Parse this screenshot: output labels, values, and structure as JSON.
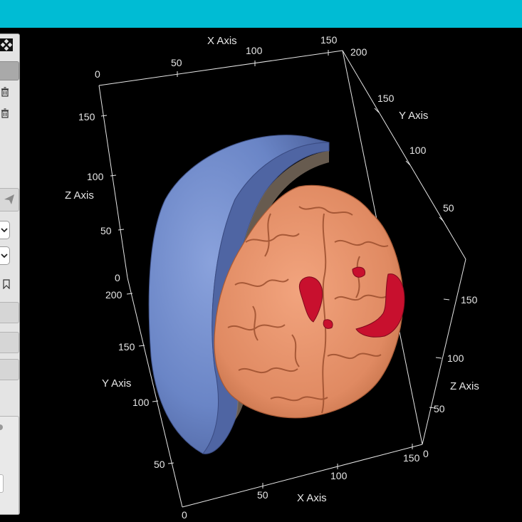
{
  "colors": {
    "header": "#00bcd4",
    "background": "#000000",
    "skull": "#6a85c6",
    "brain": "#e8926a",
    "lesion": "#c8102e",
    "axis": "#e6e6e6"
  },
  "axes": {
    "top_x": {
      "label": "X Axis",
      "ticks": [
        "0",
        "50",
        "100",
        "150",
        "200"
      ]
    },
    "top_y": {
      "label": "Y Axis",
      "ticks": [
        "150",
        "100",
        "50"
      ]
    },
    "left_z": {
      "label": "Z Axis",
      "ticks": [
        "150",
        "100",
        "50",
        "0"
      ]
    },
    "left_y": {
      "label": "Y Axis",
      "ticks": [
        "200",
        "150",
        "100",
        "50",
        "0"
      ]
    },
    "bottom_x": {
      "label": "X Axis",
      "ticks": [
        "50",
        "100",
        "150"
      ]
    },
    "right_z": {
      "label": "Z Axis",
      "ticks": [
        "150",
        "100",
        "50",
        "0"
      ]
    }
  },
  "panel": {
    "icons": [
      "expand-icon",
      "trash-icon",
      "trash-icon",
      "send-icon",
      "chevron-down-icon",
      "chevron-down-icon",
      "bookmark-icon"
    ]
  }
}
